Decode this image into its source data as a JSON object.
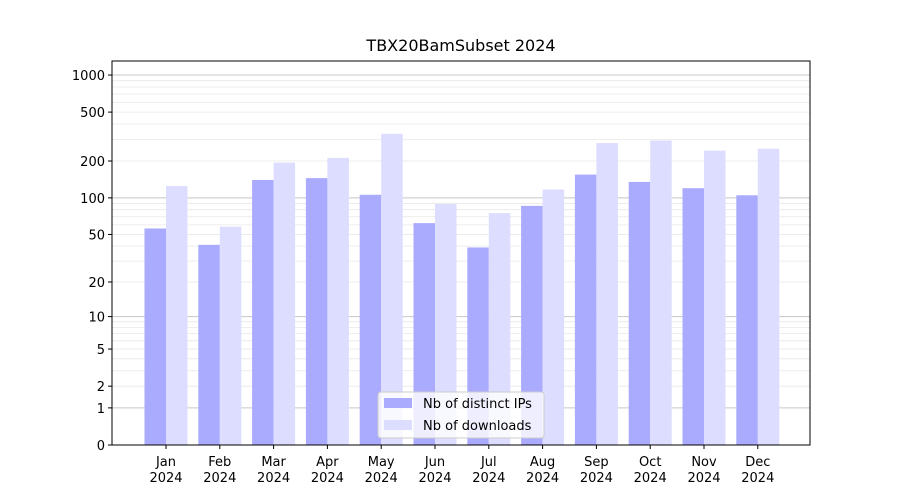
{
  "chart_data": {
    "type": "bar",
    "title": "TBX20BamSubset 2024",
    "xlabel": "",
    "ylabel": "",
    "yscale": "log(1+y)",
    "ylim": [
      0,
      1300
    ],
    "grid": true,
    "legend_position": "bottom-center",
    "categories": [
      [
        "Jan",
        "2024"
      ],
      [
        "Feb",
        "2024"
      ],
      [
        "Mar",
        "2024"
      ],
      [
        "Apr",
        "2024"
      ],
      [
        "May",
        "2024"
      ],
      [
        "Jun",
        "2024"
      ],
      [
        "Jul",
        "2024"
      ],
      [
        "Aug",
        "2024"
      ],
      [
        "Sep",
        "2024"
      ],
      [
        "Oct",
        "2024"
      ],
      [
        "Nov",
        "2024"
      ],
      [
        "Dec",
        "2024"
      ]
    ],
    "yticks": [
      {
        "value": 0,
        "label": "0"
      },
      {
        "value": 1,
        "label": "1"
      },
      {
        "value": 2,
        "label": "2"
      },
      {
        "value": 5,
        "label": "5"
      },
      {
        "value": 10,
        "label": "10"
      },
      {
        "value": 20,
        "label": "20"
      },
      {
        "value": 50,
        "label": "50"
      },
      {
        "value": 100,
        "label": "100"
      },
      {
        "value": 200,
        "label": "200"
      },
      {
        "value": 500,
        "label": "500"
      },
      {
        "value": 1000,
        "label": "1000"
      }
    ],
    "series": [
      {
        "name": "Nb of distinct IPs",
        "color": "#aaaaff",
        "values": [
          56,
          41,
          140,
          145,
          106,
          62,
          39,
          86,
          155,
          135,
          120,
          105
        ]
      },
      {
        "name": "Nb of downloads",
        "color": "#ddddff",
        "values": [
          125,
          58,
          194,
          212,
          333,
          89,
          75,
          117,
          280,
          294,
          243,
          252
        ]
      }
    ]
  }
}
